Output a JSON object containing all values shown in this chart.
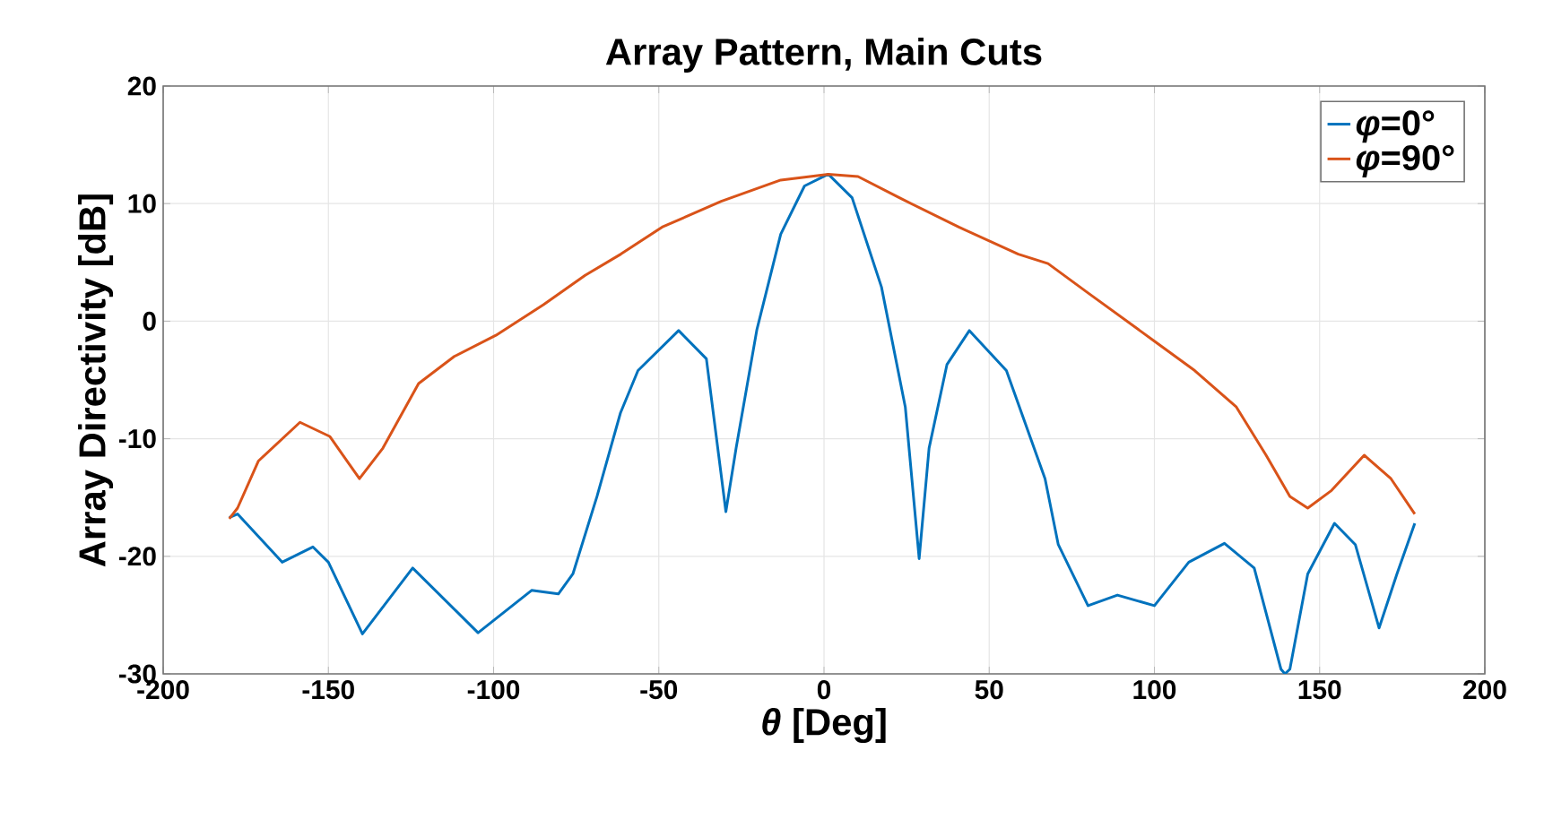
{
  "chart_data": {
    "type": "line",
    "title": "Array Pattern, Main Cuts",
    "xlabel": "*θ* [Deg]",
    "ylabel": "Array Directivity [dB]",
    "xlim": [
      -200,
      200
    ],
    "xticks": [
      -200,
      -150,
      -100,
      -50,
      0,
      50,
      100,
      150,
      200
    ],
    "ylim": [
      -30,
      20
    ],
    "yticks": [
      -30,
      -20,
      -10,
      0,
      10,
      20
    ],
    "grid": true,
    "legend": "top right",
    "marker": "none",
    "line_style": "solid",
    "series": [
      {
        "name": "*φ*=0°",
        "color": "#0072bd",
        "x": [
          -180,
          -177.5,
          -164,
          -154.7,
          -150,
          -139.7,
          -124.5,
          -104.7,
          -88.5,
          -80.4,
          -76,
          -68.7,
          -61.6,
          -56.3,
          -44,
          -35.6,
          -29.7,
          -26.6,
          -20.3,
          -13.1,
          -5.9,
          1.3,
          8.5,
          17.4,
          24.6,
          28.8,
          31.8,
          37.2,
          44,
          55.2,
          66.9,
          70.9,
          79.9,
          88.8,
          100,
          110.4,
          121.2,
          130.2,
          138.3,
          139.5,
          141,
          146.4,
          154.5,
          160.8,
          168,
          173.4,
          178.8
        ],
        "values": [
          -16.7,
          -16.4,
          -20.5,
          -19.2,
          -20.5,
          -26.6,
          -21,
          -26.5,
          -22.9,
          -23.2,
          -21.5,
          -14.9,
          -7.8,
          -4.2,
          -0.8,
          -3.2,
          -16.2,
          -10.8,
          -0.7,
          7.4,
          11.5,
          12.5,
          10.5,
          2.9,
          -7.3,
          -20.2,
          -10.8,
          -3.7,
          -0.8,
          -4.2,
          -13.4,
          -19,
          -24.2,
          -23.3,
          -24.2,
          -20.5,
          -18.9,
          -21,
          -29.6,
          -30,
          -29.6,
          -21.5,
          -17.2,
          -19,
          -26.1,
          -21.5,
          -17.2
        ]
      },
      {
        "name": "*φ*=90°",
        "color": "#d95319",
        "x": [
          -180,
          -177.5,
          -171.2,
          -158.6,
          -149.6,
          -140.6,
          -133.5,
          -122.7,
          -111.9,
          -99.3,
          -84.9,
          -72.3,
          -61.5,
          -49,
          -31.1,
          -13.1,
          1.3,
          10.3,
          22.8,
          40.8,
          58.8,
          67.8,
          79.9,
          100,
          112.2,
          124.8,
          133.8,
          141,
          146.4,
          153.6,
          163.5,
          171.6,
          178.8
        ],
        "values": [
          -16.8,
          -15.9,
          -11.9,
          -8.6,
          -9.8,
          -13.4,
          -10.8,
          -5.3,
          -3,
          -1.2,
          1.4,
          3.9,
          5.7,
          8,
          10.2,
          12,
          12.5,
          12.3,
          10.5,
          8,
          5.7,
          4.9,
          2.4,
          -1.7,
          -4.2,
          -7.3,
          -11.4,
          -14.9,
          -15.9,
          -14.4,
          -11.4,
          -13.4,
          -16.4
        ]
      }
    ]
  }
}
